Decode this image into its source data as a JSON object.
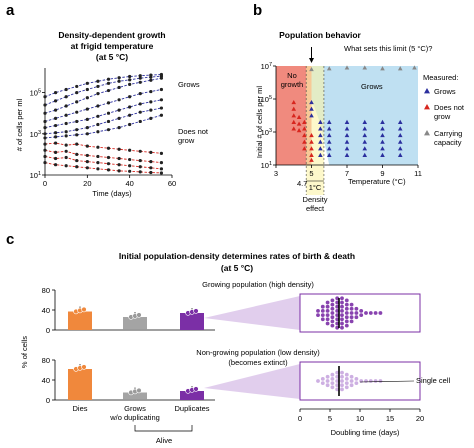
{
  "colors": {
    "grows": "#2b2f9e",
    "no_growth": "#d7261e",
    "carrying": "#888888",
    "no_growth_fill": "#f08a7e",
    "grows_fill": "#bfe0f2",
    "effect_fill": "#fbf3a8",
    "purple": "#7b2fa6",
    "orange": "#f0883c",
    "gray": "#9a9a9a",
    "light_purple": "#c8a6df",
    "black": "#000000"
  },
  "panels": {
    "a": {
      "letter": "a",
      "title_line1": "Density-dependent growth",
      "title_line2": "at frigid temperature",
      "title_line3": "(at 5 °C)",
      "ylabel": "# of cells per ml",
      "xlabel": "Time (days)",
      "label_grows": "Grows",
      "label_not_grow_1": "Does not",
      "label_not_grow_2": "grow"
    },
    "b": {
      "letter": "b",
      "title": "Population behavior",
      "question": "What sets this limit (5 °C)?",
      "ylabel": "Initial # of cells per ml",
      "xlabel": "Temperature (°C)",
      "region_no_growth_1": "No",
      "region_no_growth_2": "growth",
      "region_grows": "Grows",
      "tick_4_7": "4.7",
      "width_label": "1°C",
      "effect_label_1": "Density",
      "effect_label_2": "effect",
      "legend_title": "Measured:",
      "legend_grows": "Grows",
      "legend_not_grow_1": "Does not",
      "legend_not_grow_2": "grow",
      "legend_carry_1": "Carrying",
      "legend_carry_2": "capacity"
    },
    "c": {
      "letter": "c",
      "title_line1": "Initial population-density determines rates of birth & death",
      "title_line2": "(at 5 °C)",
      "ylabel": "% of cells",
      "growing_label": "Growing population (high density)",
      "nongrowing_label_1": "Non-growing population (low density)",
      "nongrowing_label_2": "(becomes extinct)",
      "cat_dies": "Dies",
      "cat_grows_1": "Grows",
      "cat_grows_2": "w/o duplicating",
      "cat_duplicates": "Duplicates",
      "alive_label": "Alive",
      "single_cell_label": "Single cell",
      "xlabel": "Doubling time (days)"
    }
  },
  "chart_data": [
    {
      "panel": "a",
      "type": "line",
      "title": "Density-dependent growth at frigid temperature (at 5 °C)",
      "xlabel": "Time (days)",
      "ylabel": "# of cells per ml",
      "xlim": [
        0,
        60
      ],
      "ylim_log10": [
        1,
        6
      ],
      "yscale": "log",
      "xticks": [
        0,
        20,
        40,
        60
      ],
      "yticks": [
        "10^1",
        "10^3",
        "10^5"
      ],
      "x": [
        0,
        5,
        10,
        15,
        20,
        25,
        30,
        35,
        40,
        45,
        50,
        55
      ],
      "series_log10_cell_density": [
        {
          "group": "Grows",
          "values": [
            4.8,
            5.0,
            5.15,
            5.3,
            5.45,
            5.55,
            5.65,
            5.72,
            5.78,
            5.82,
            5.85,
            5.88
          ]
        },
        {
          "group": "Grows",
          "values": [
            4.4,
            4.6,
            4.8,
            5.0,
            5.15,
            5.3,
            5.45,
            5.55,
            5.62,
            5.7,
            5.75,
            5.8
          ]
        },
        {
          "group": "Grows",
          "values": [
            4.0,
            4.15,
            4.35,
            4.55,
            4.75,
            4.95,
            5.1,
            5.25,
            5.4,
            5.5,
            5.6,
            5.7
          ]
        },
        {
          "group": "Grows",
          "values": [
            3.6,
            3.75,
            3.9,
            4.05,
            4.2,
            4.35,
            4.5,
            4.65,
            4.8,
            4.95,
            5.05,
            5.15
          ]
        },
        {
          "group": "Grows",
          "values": [
            3.3,
            3.4,
            3.5,
            3.6,
            3.7,
            3.85,
            4.0,
            4.15,
            4.3,
            4.45,
            4.55,
            4.65
          ]
        },
        {
          "group": "Grows",
          "values": [
            3.0,
            3.05,
            3.1,
            3.2,
            3.3,
            3.45,
            3.6,
            3.75,
            3.9,
            4.05,
            4.15,
            4.25
          ]
        },
        {
          "group": "Grows",
          "values": [
            2.8,
            2.85,
            2.9,
            2.95,
            3.0,
            3.1,
            3.2,
            3.3,
            3.45,
            3.6,
            3.75,
            3.9
          ]
        },
        {
          "group": "Does not grow",
          "values": [
            2.5,
            2.55,
            2.45,
            2.5,
            2.4,
            2.35,
            2.3,
            2.25,
            2.2,
            2.15,
            2.1,
            2.05
          ]
        },
        {
          "group": "Does not grow",
          "values": [
            2.2,
            2.1,
            2.15,
            2.0,
            1.95,
            1.9,
            1.85,
            1.8,
            1.75,
            1.7,
            1.65,
            1.6
          ]
        },
        {
          "group": "Does not grow",
          "values": [
            1.9,
            1.8,
            1.85,
            1.7,
            1.65,
            1.6,
            1.55,
            1.5,
            1.45,
            1.4,
            1.35,
            1.3
          ]
        },
        {
          "group": "Does not grow",
          "values": [
            1.6,
            1.5,
            1.45,
            1.4,
            1.35,
            1.3,
            1.25,
            1.2,
            1.18,
            1.15,
            1.12,
            1.1
          ]
        }
      ]
    },
    {
      "panel": "b",
      "type": "scatter",
      "title": "Population behavior",
      "xlabel": "Temperature (°C)",
      "ylabel": "Initial # of cells per ml",
      "xlim": [
        3,
        11
      ],
      "ylim_log10": [
        1,
        7
      ],
      "yscale": "log",
      "xticks": [
        3,
        5,
        7,
        9,
        11
      ],
      "yticks": [
        "10^1",
        "10^3",
        "10^5",
        "10^7"
      ],
      "grows_points": [
        {
          "x": 5,
          "y": 4.8
        },
        {
          "x": 5,
          "y": 4.4
        },
        {
          "x": 5,
          "y": 4.0
        },
        {
          "x": 5.5,
          "y": 3.6
        },
        {
          "x": 5.5,
          "y": 3.2
        },
        {
          "x": 5.5,
          "y": 2.8
        },
        {
          "x": 5.5,
          "y": 2.4
        },
        {
          "x": 5.5,
          "y": 2.0
        },
        {
          "x": 5.5,
          "y": 1.6
        },
        {
          "x": 6,
          "y": 3.6
        },
        {
          "x": 6,
          "y": 3.2
        },
        {
          "x": 6,
          "y": 2.8
        },
        {
          "x": 6,
          "y": 2.4
        },
        {
          "x": 6,
          "y": 2.0
        },
        {
          "x": 6,
          "y": 1.6
        },
        {
          "x": 7,
          "y": 3.6
        },
        {
          "x": 7,
          "y": 3.2
        },
        {
          "x": 7,
          "y": 2.8
        },
        {
          "x": 7,
          "y": 2.4
        },
        {
          "x": 7,
          "y": 2.0
        },
        {
          "x": 7,
          "y": 1.6
        },
        {
          "x": 8,
          "y": 3.6
        },
        {
          "x": 8,
          "y": 3.2
        },
        {
          "x": 8,
          "y": 2.8
        },
        {
          "x": 8,
          "y": 2.4
        },
        {
          "x": 8,
          "y": 2.0
        },
        {
          "x": 8,
          "y": 1.6
        },
        {
          "x": 9,
          "y": 3.6
        },
        {
          "x": 9,
          "y": 3.2
        },
        {
          "x": 9,
          "y": 2.8
        },
        {
          "x": 9,
          "y": 2.4
        },
        {
          "x": 9,
          "y": 2.0
        },
        {
          "x": 9,
          "y": 1.6
        },
        {
          "x": 10,
          "y": 3.6
        },
        {
          "x": 10,
          "y": 3.2
        },
        {
          "x": 10,
          "y": 2.8
        },
        {
          "x": 10,
          "y": 2.4
        },
        {
          "x": 10,
          "y": 2.0
        },
        {
          "x": 10,
          "y": 1.6
        }
      ],
      "no_growth_points": [
        {
          "x": 4,
          "y": 4.8
        },
        {
          "x": 4,
          "y": 4.4
        },
        {
          "x": 4,
          "y": 4.0
        },
        {
          "x": 4,
          "y": 3.6
        },
        {
          "x": 4,
          "y": 3.2
        },
        {
          "x": 4.3,
          "y": 3.9
        },
        {
          "x": 4.3,
          "y": 3.5
        },
        {
          "x": 4.3,
          "y": 3.1
        },
        {
          "x": 4.6,
          "y": 3.6
        },
        {
          "x": 4.6,
          "y": 3.2
        },
        {
          "x": 4.6,
          "y": 2.8
        },
        {
          "x": 5,
          "y": 2.8
        },
        {
          "x": 5,
          "y": 2.4
        },
        {
          "x": 5,
          "y": 2.0
        },
        {
          "x": 5,
          "y": 1.6
        },
        {
          "x": 5,
          "y": 1.3
        },
        {
          "x": 4.6,
          "y": 2.4
        },
        {
          "x": 4.6,
          "y": 2.0
        }
      ],
      "carrying_points": [
        {
          "x": 5,
          "y": 6.8
        },
        {
          "x": 6,
          "y": 6.85
        },
        {
          "x": 7,
          "y": 6.9
        },
        {
          "x": 8,
          "y": 6.9
        },
        {
          "x": 9,
          "y": 6.85
        },
        {
          "x": 10,
          "y": 6.85
        },
        {
          "x": 10.8,
          "y": 6.9
        }
      ],
      "legend": [
        "Grows",
        "Does not grow",
        "Carrying capacity"
      ]
    },
    {
      "panel": "c-top",
      "type": "bar",
      "ylabel": "% of cells",
      "categories": [
        "Dies",
        "Grows w/o duplicating",
        "Duplicates"
      ],
      "values": [
        37,
        26,
        34
      ],
      "ylim": [
        0,
        80
      ]
    },
    {
      "panel": "c-bottom",
      "type": "bar",
      "ylabel": "% of cells",
      "categories": [
        "Dies",
        "Grows w/o duplicating",
        "Duplicates"
      ],
      "values": [
        62,
        15,
        18
      ],
      "ylim": [
        0,
        80
      ]
    },
    {
      "panel": "c-swarm",
      "type": "scatter",
      "xlabel": "Doubling time (days)",
      "xlim": [
        0,
        20
      ],
      "xticks": [
        0,
        5,
        10,
        15,
        20
      ],
      "growing_median": 6.5,
      "nongrowing_median": 6.5
    }
  ]
}
